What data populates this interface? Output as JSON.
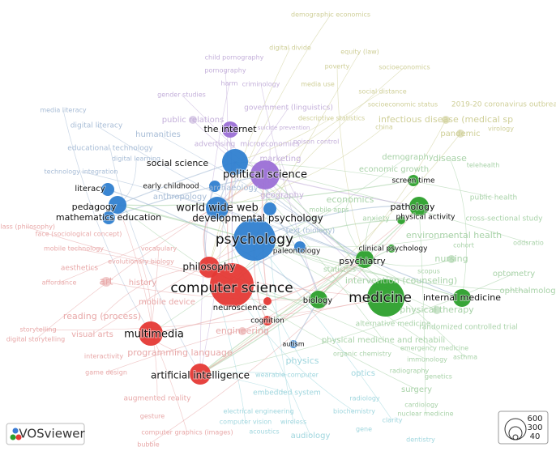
{
  "labels": [
    "demographic economics",
    "digital divide",
    "equity (law)",
    "child pornography",
    "poverty",
    "socioeconomics",
    "pornography",
    "harm",
    "criminology",
    "media use",
    "social distance",
    "gender studies",
    "media literacy",
    "government (linguistics)",
    "socioeconomic status",
    "2019-20 coronavirus outbreak",
    "public relations",
    "descriptive statistics",
    "infectious disease (medical sp",
    "digital literacy",
    "humanities",
    "suicide prevention",
    "china",
    "pandemic",
    "virology",
    "poison control",
    "advertising",
    "microeconomics",
    "educational technology",
    "marketing",
    "demography",
    "disease",
    "digital learning",
    "economic growth",
    "telehealth",
    "technology integration",
    "archaeology",
    "geography",
    "economics",
    "public health",
    "anthropology",
    "mobile apps",
    "anxiety",
    "cross-sectional study",
    "class (philosophy)",
    "face (sociological concept)",
    "text (biology)",
    "environmental health",
    "oddsratio",
    "mobile technology",
    "vocabulary",
    "evolutionary biology",
    "cohort",
    "aesthetics",
    "statistics",
    "nursing",
    "scopus",
    "optometry",
    "affordance",
    "art",
    "history",
    "intervention (counseling)",
    "ophthalmology",
    "mobile device",
    "physical therapy",
    "reading (process)",
    "alternative medicine",
    "physical medicine and rehabili",
    "randomized controlled trial",
    "storytelling",
    "visual arts",
    "engineering",
    "digital storytelling",
    "emergency medicine",
    "asthma",
    "programming language",
    "physics",
    "interactivity",
    "organic chemistry",
    "immunology",
    "game design",
    "optics",
    "radiography",
    "genetics",
    "wearable computer",
    "surgery",
    "embedded system",
    "augmented reality",
    "radiology",
    "cardiology",
    "biochemistry",
    "gesture",
    "electrical engineering",
    "nuclear medicine",
    "clarity",
    "computer vision",
    "wireless",
    "gene",
    "dentistry",
    "computer graphics (images)",
    "acoustics",
    "audiology",
    "bubble",
    "the internet",
    "social science",
    "political science",
    "early childhood",
    "literacy",
    "pedagogy",
    "world wide web",
    "mathematics education",
    "developmental psychology",
    "screen time",
    "pathology",
    "physical activity",
    "psychology",
    "paleontology",
    "clinical psychology",
    "psychiatry",
    "philosophy",
    "computer science",
    "biology",
    "medicine",
    "internal medicine",
    "neuroscience",
    "cognition",
    "multimedia",
    "autism",
    "artificial intelligence"
  ],
  "logo": "VOSviewer",
  "legend": {
    "sizes": [
      600,
      300,
      40
    ]
  }
}
